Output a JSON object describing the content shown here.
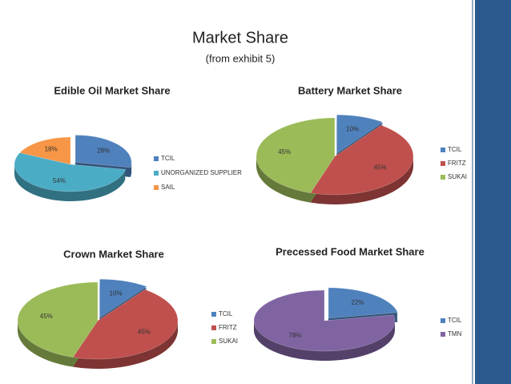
{
  "title": "Market Share",
  "subtitle": "(from exhibit 5)",
  "chart_data": [
    {
      "type": "pie",
      "title": "Edible Oil Market Share",
      "categories": [
        "TCIL",
        "UNORGANIZED SUPPLIER",
        "SAIL"
      ],
      "values": [
        28,
        54,
        18
      ],
      "value_labels": [
        "28%",
        "54%",
        "18%"
      ],
      "colors": [
        "#4f81bd",
        "#4bacc6",
        "#f79646"
      ]
    },
    {
      "type": "pie",
      "title": "Battery Market Share",
      "categories": [
        "TCIL",
        "FRITZ",
        "SUKAI"
      ],
      "values": [
        10,
        45,
        45
      ],
      "value_labels": [
        "10%",
        "45%",
        "45%"
      ],
      "colors": [
        "#4f81bd",
        "#c0504d",
        "#9bbb59"
      ]
    },
    {
      "type": "pie",
      "title": "Crown Market Share",
      "categories": [
        "TCIL",
        "FRITZ",
        "SUKAI"
      ],
      "values": [
        10,
        45,
        45
      ],
      "value_labels": [
        "10%",
        "45%",
        "45%"
      ],
      "colors": [
        "#4f81bd",
        "#c0504d",
        "#9bbb59"
      ]
    },
    {
      "type": "pie",
      "title": "Precessed Food Market Share",
      "categories": [
        "TCIL",
        "TMN"
      ],
      "values": [
        22,
        78
      ],
      "value_labels": [
        "22%",
        "78%"
      ],
      "colors": [
        "#4f81bd",
        "#8064a2"
      ]
    }
  ]
}
